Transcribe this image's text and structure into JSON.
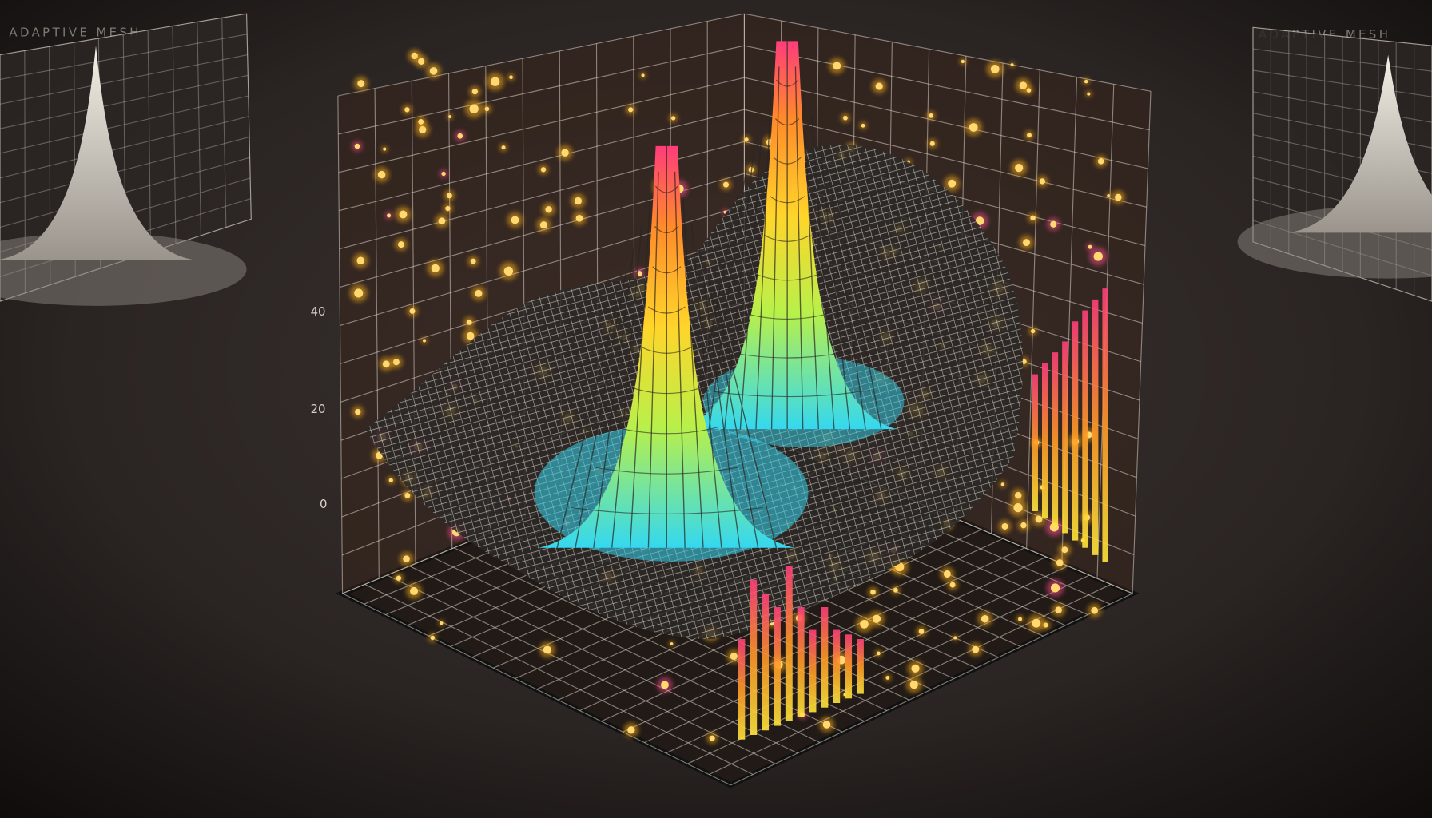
{
  "scene": {
    "left_panel": {
      "title": "ADAPTIVE MESH"
    },
    "right_panel": {
      "title": "ADAPTIVE MESH"
    },
    "axis_labels": [
      "40",
      "20",
      "0"
    ]
  }
}
